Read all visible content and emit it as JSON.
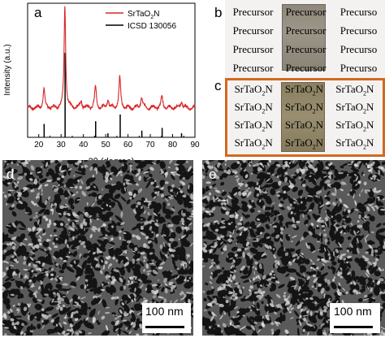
{
  "panel_a": {
    "letter": "a",
    "legend": [
      "SrTaO2N",
      "ICSD 130056"
    ],
    "series_colors": {
      "measured": "#d62728",
      "reference": "#000000"
    }
  },
  "panel_b": {
    "letter": "b",
    "text": "Precursor",
    "cells": [
      "Precursor",
      "Precursor",
      "Precurso",
      "Precursor",
      "Precursor",
      "Precurso",
      "Precursor",
      "Precursor",
      "Precurso",
      "Precursor",
      "Precursor",
      "Precurso"
    ]
  },
  "panel_c": {
    "letter": "c",
    "border_color": "#d2691e",
    "cells": [
      "SrTaO2N",
      "SrTaO2N",
      "SrTaO2N",
      "SrTaO2N",
      "SrTaO2N",
      "SrTaO2N",
      "SrTaO2N",
      "SrTaO2N",
      "SrTaO2N",
      "SrTaO2N",
      "SrTaO2N",
      "SrTaO2N"
    ]
  },
  "panel_d": {
    "letter": "d",
    "scale_label": "100 nm"
  },
  "panel_e": {
    "letter": "e",
    "scale_label": "100 nm"
  },
  "chart_data": {
    "type": "line",
    "title": "",
    "xlabel": "2θ (degree)",
    "ylabel": "Intensity (a.u.)",
    "xlim": [
      15,
      90
    ],
    "xticks": [
      20,
      30,
      40,
      50,
      60,
      70,
      80,
      90
    ],
    "legend_position": "top-right",
    "series": [
      {
        "name": "SrTaO2N",
        "type": "line",
        "color": "#d62728",
        "baseline": 0.22,
        "peaks": [
          {
            "x": 22.3,
            "h": 0.14,
            "w": 0.45
          },
          {
            "x": 31.7,
            "h": 0.76,
            "w": 0.42
          },
          {
            "x": 39.0,
            "h": 0.05,
            "w": 0.5
          },
          {
            "x": 45.4,
            "h": 0.16,
            "w": 0.45
          },
          {
            "x": 51.0,
            "h": 0.07,
            "w": 0.45
          },
          {
            "x": 56.3,
            "h": 0.23,
            "w": 0.45
          },
          {
            "x": 66.1,
            "h": 0.08,
            "w": 0.5
          },
          {
            "x": 75.2,
            "h": 0.08,
            "w": 0.5
          },
          {
            "x": 84.0,
            "h": 0.05,
            "w": 0.5
          }
        ]
      },
      {
        "name": "ICSD 130056",
        "type": "stick",
        "color": "#000000",
        "sticks": [
          {
            "x": 22.4,
            "h": 0.1
          },
          {
            "x": 31.8,
            "h": 0.63
          },
          {
            "x": 45.5,
            "h": 0.12
          },
          {
            "x": 51.0,
            "h": 0.03
          },
          {
            "x": 56.5,
            "h": 0.17
          },
          {
            "x": 66.2,
            "h": 0.05
          },
          {
            "x": 75.3,
            "h": 0.07
          },
          {
            "x": 84.0,
            "h": 0.03
          }
        ]
      }
    ]
  }
}
